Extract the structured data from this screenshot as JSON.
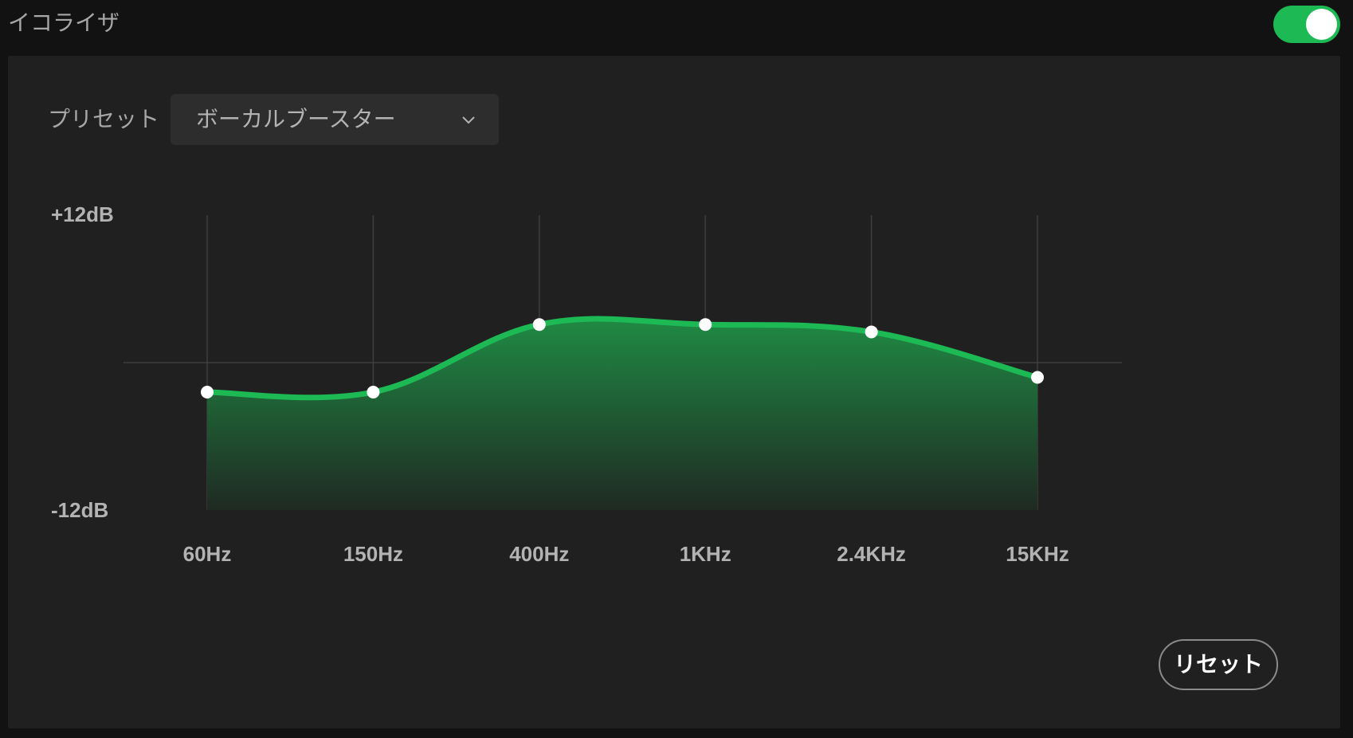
{
  "header": {
    "title": "イコライザ",
    "toggle_on": true,
    "toggle_color": "#1db954"
  },
  "preset": {
    "label": "プリセット",
    "selected": "ボーカルブースター",
    "icon": "chevron-down-icon"
  },
  "reset_label": "リセット",
  "chart_data": {
    "type": "area",
    "categories": [
      "60Hz",
      "150Hz",
      "400Hz",
      "1KHz",
      "2.4KHz",
      "15KHz"
    ],
    "values": [
      -2.4,
      -2.4,
      3.1,
      3.1,
      2.5,
      -1.2
    ],
    "y_labels": {
      "top": "+12dB",
      "bottom": "-12dB"
    },
    "ylim": [
      -12,
      12
    ],
    "grid": true,
    "line_color": "#1db954",
    "title": ""
  }
}
